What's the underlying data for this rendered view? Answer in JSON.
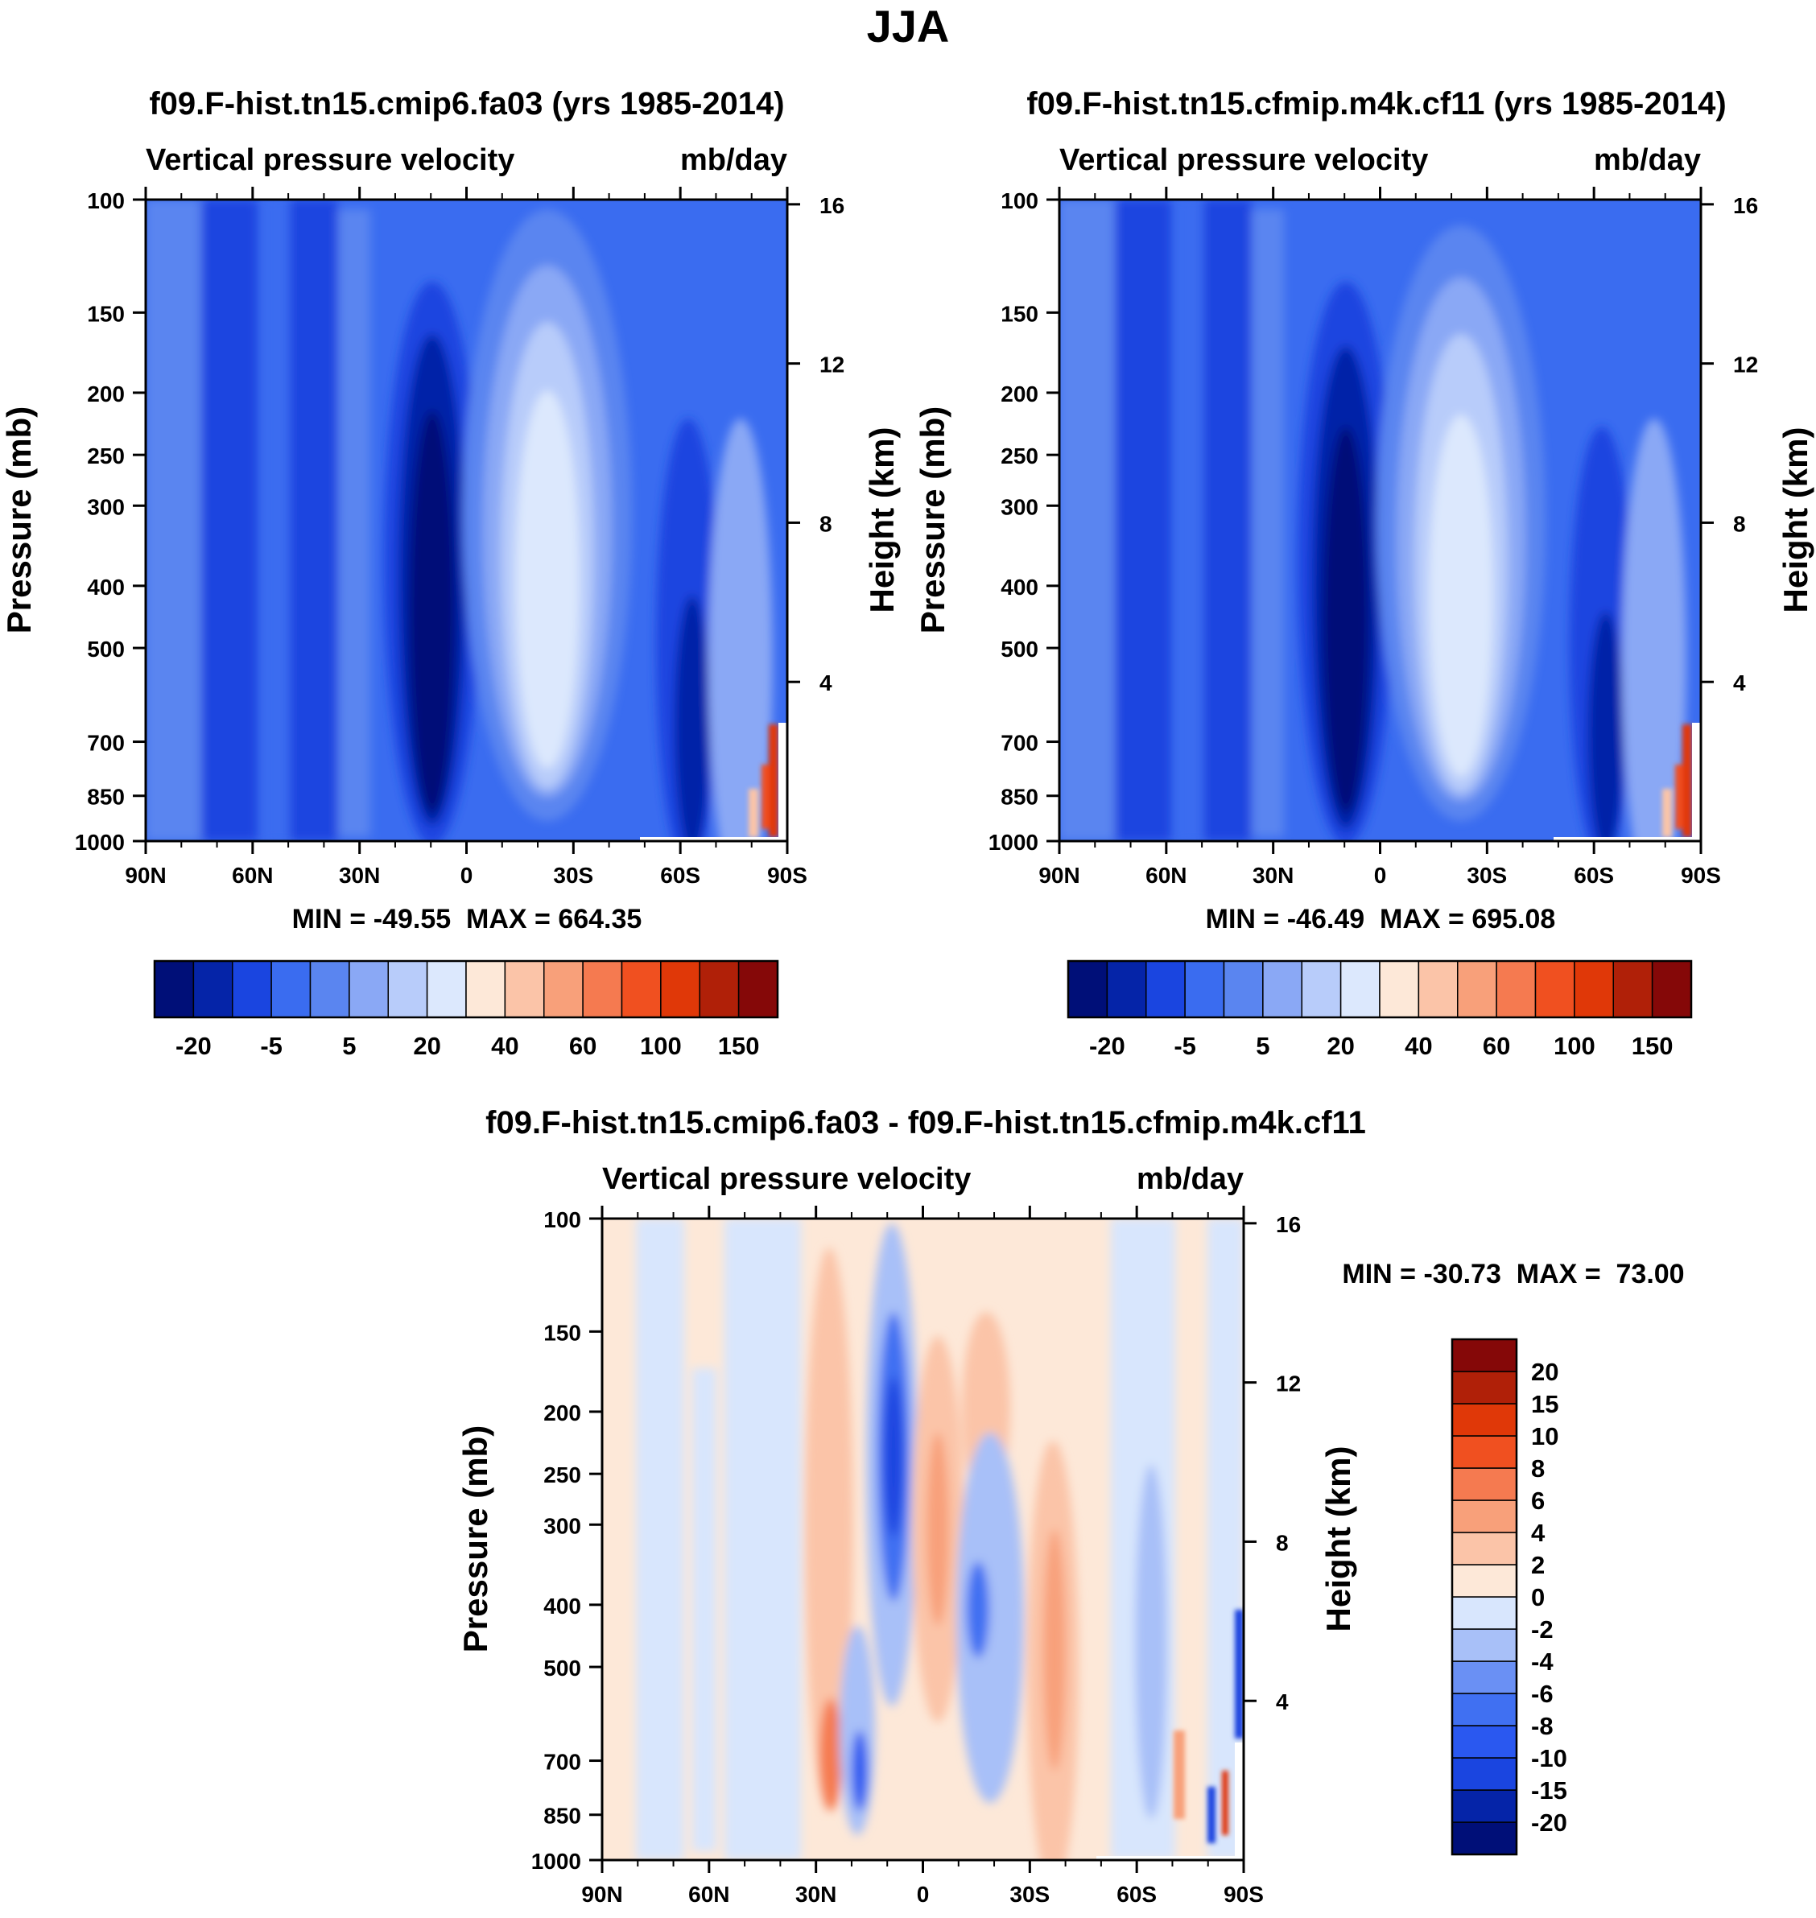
{
  "figure_title": "JJA",
  "colors": {
    "c_m20": "#000f78",
    "c_m10": "#0524a8",
    "c_m5": "#1a45e0",
    "c_0": "#3a6cf0",
    "c_5": "#5a85f0",
    "c_10": "#8aa8f5",
    "c_20": "#b8ccfa",
    "c_30": "#dce8fd",
    "c_40": "#fde8d8",
    "c_50": "#fbc4a8",
    "c_60": "#f8a07a",
    "c_80": "#f57a50",
    "c_100": "#f05020",
    "c_120": "#e03808",
    "c_150": "#b02008",
    "c_200": "#850808"
  },
  "chart_data": [
    {
      "type": "heatmap",
      "title": "f09.F-hist.tn15.cmip6.fa03 (yrs 1985-2014)",
      "subtitle_left": "Vertical pressure velocity",
      "subtitle_right": "mb/day",
      "ylabel": "Pressure (mb)",
      "y2label": "Height (km)",
      "x_ticks": [
        "90N",
        "60N",
        "30N",
        "0",
        "30S",
        "60S",
        "90S"
      ],
      "y_ticks": [
        100,
        150,
        200,
        250,
        300,
        400,
        500,
        700,
        850,
        1000
      ],
      "y2_ticks": [
        16,
        12,
        8,
        4
      ],
      "ylim": [
        1000,
        100
      ],
      "xlim": [
        90,
        -90
      ],
      "stats": "MIN = -49.55  MAX = 664.35",
      "stats_min": -49.55,
      "stats_max": 664.35,
      "colorbar": {
        "levels": [
          -20,
          -10,
          -5,
          0,
          5,
          10,
          20,
          30,
          40,
          50,
          60,
          80,
          100,
          120,
          150
        ],
        "labels": [
          "-20",
          "-5",
          "5",
          "20",
          "40",
          "60",
          "100",
          "150"
        ],
        "colors": [
          "#000f78",
          "#0524a8",
          "#1a45e0",
          "#3a6cf0",
          "#5a85f0",
          "#8aa8f5",
          "#b8ccfa",
          "#dce8fd",
          "#fde8d8",
          "#fbc4a8",
          "#f8a07a",
          "#f57a50",
          "#f05020",
          "#e03808",
          "#b02008",
          "#850808"
        ]
      },
      "features": [
        {
          "name": "rising branch near 8N",
          "lat": 8,
          "p_top": 220,
          "p_bottom": 1000,
          "value": -30
        },
        {
          "name": "subsidence near 18S",
          "lat": -18,
          "p_top": 200,
          "p_bottom": 950,
          "value": 30
        },
        {
          "name": "southern rising band near 55S",
          "lat": -57,
          "p_top": 260,
          "p_bottom": 1000,
          "value": -15
        },
        {
          "name": "antarctic surface max",
          "lat": -88,
          "p_top": 850,
          "p_bottom": 1000,
          "value": 150
        }
      ]
    },
    {
      "type": "heatmap",
      "title": "f09.F-hist.tn15.cfmip.m4k.cf11 (yrs 1985-2014)",
      "subtitle_left": "Vertical pressure velocity",
      "subtitle_right": "mb/day",
      "ylabel": "Pressure (mb)",
      "y2label": "Height (km)",
      "x_ticks": [
        "90N",
        "60N",
        "30N",
        "0",
        "30S",
        "60S",
        "90S"
      ],
      "y_ticks": [
        100,
        150,
        200,
        250,
        300,
        400,
        500,
        700,
        850,
        1000
      ],
      "y2_ticks": [
        16,
        12,
        8,
        4
      ],
      "ylim": [
        1000,
        100
      ],
      "xlim": [
        90,
        -90
      ],
      "stats": "MIN = -46.49  MAX = 695.08",
      "stats_min": -46.49,
      "stats_max": 695.08,
      "colorbar": {
        "levels": [
          -20,
          -10,
          -5,
          0,
          5,
          10,
          20,
          30,
          40,
          50,
          60,
          80,
          100,
          120,
          150
        ],
        "labels": [
          "-20",
          "-5",
          "5",
          "20",
          "40",
          "60",
          "100",
          "150"
        ],
        "colors": [
          "#000f78",
          "#0524a8",
          "#1a45e0",
          "#3a6cf0",
          "#5a85f0",
          "#8aa8f5",
          "#b8ccfa",
          "#dce8fd",
          "#fde8d8",
          "#fbc4a8",
          "#f8a07a",
          "#f57a50",
          "#f05020",
          "#e03808",
          "#b02008",
          "#850808"
        ]
      },
      "features": [
        {
          "name": "rising branch near 8N",
          "lat": 8,
          "p_top": 230,
          "p_bottom": 1000,
          "value": -30
        },
        {
          "name": "subsidence near 18S",
          "lat": -18,
          "p_top": 210,
          "p_bottom": 950,
          "value": 30
        },
        {
          "name": "southern rising band near 55S",
          "lat": -57,
          "p_top": 280,
          "p_bottom": 1000,
          "value": -15
        },
        {
          "name": "antarctic surface max",
          "lat": -88,
          "p_top": 850,
          "p_bottom": 1000,
          "value": 150
        }
      ]
    },
    {
      "type": "heatmap",
      "title": "f09.F-hist.tn15.cmip6.fa03 - f09.F-hist.tn15.cfmip.m4k.cf11",
      "subtitle_left": "Vertical pressure velocity",
      "subtitle_right": "mb/day",
      "ylabel": "Pressure (mb)",
      "y2label": "Height (km)",
      "x_ticks": [
        "90N",
        "60N",
        "30N",
        "0",
        "30S",
        "60S",
        "90S"
      ],
      "y_ticks": [
        100,
        150,
        200,
        250,
        300,
        400,
        500,
        700,
        850,
        1000
      ],
      "y2_ticks": [
        16,
        12,
        8,
        4
      ],
      "ylim": [
        1000,
        100
      ],
      "xlim": [
        90,
        -90
      ],
      "stats": "MIN = -30.73  MAX =  73.00",
      "stats_min": -30.73,
      "stats_max": 73.0,
      "colorbar": {
        "levels": [
          -20,
          -15,
          -10,
          -8,
          -6,
          -4,
          -2,
          0,
          2,
          4,
          6,
          8,
          10,
          15,
          20
        ],
        "labels": [
          "-20",
          "-15",
          "-10",
          "-8",
          "-6",
          "-4",
          "-2",
          "0",
          "2",
          "4",
          "6",
          "8",
          "10",
          "15",
          "20"
        ],
        "colors": [
          "#000f78",
          "#0524a8",
          "#1a45e0",
          "#2a58f0",
          "#4070f2",
          "#6a90f4",
          "#a8c0f8",
          "#d8e6fd",
          "#fde8d8",
          "#fbc4a8",
          "#f8a07a",
          "#f57a50",
          "#f05020",
          "#e03808",
          "#b02008",
          "#850808"
        ]
      },
      "features": [
        {
          "name": "negative core near 8N",
          "lat": 8,
          "p_top": 170,
          "p_bottom": 300,
          "value": -10
        },
        {
          "name": "positive band near 5S",
          "lat": -3,
          "p_top": 230,
          "p_bottom": 500,
          "value": 4
        },
        {
          "name": "positive near 17S upper",
          "lat": -17,
          "p_top": 170,
          "p_bottom": 220,
          "value": 4
        },
        {
          "name": "negative near 15S mid",
          "lat": -15,
          "p_top": 300,
          "p_bottom": 600,
          "value": -6
        },
        {
          "name": "positive near 35S",
          "lat": -37,
          "p_top": 320,
          "p_bottom": 900,
          "value": 3
        },
        {
          "name": "positive near 25N",
          "lat": 25,
          "p_top": 230,
          "p_bottom": 900,
          "value": 3
        },
        {
          "name": "negative near 17N low",
          "lat": 17,
          "p_top": 700,
          "p_bottom": 900,
          "value": -8
        }
      ]
    }
  ]
}
